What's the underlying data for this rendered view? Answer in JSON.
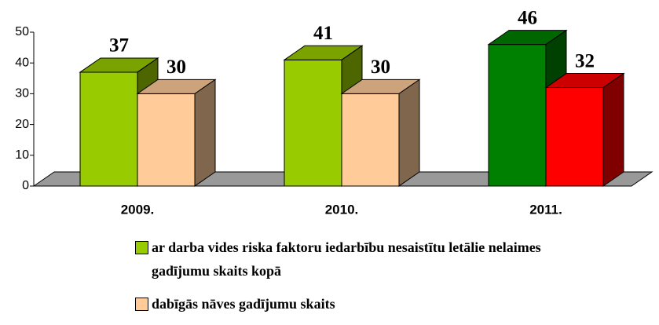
{
  "chart_data": {
    "type": "bar3d",
    "categories": [
      "2009.",
      "2010.",
      "2011."
    ],
    "series": [
      {
        "name": "ar darba vides riska faktoru iedarbību nesaistītu letālie nelaimes gadījumu skaits kopā",
        "color": "#99cc00",
        "colors": [
          "#99cc00",
          "#99cc00",
          "#008000"
        ],
        "values": [
          37,
          41,
          46
        ]
      },
      {
        "name": "dabīgās nāves gadījumu skaits",
        "color": "#ffcc99",
        "colors": [
          "#ffcc99",
          "#ffcc99",
          "#ff0000"
        ],
        "values": [
          30,
          30,
          32
        ]
      }
    ],
    "ylim": [
      0,
      50
    ],
    "yticks": [
      0,
      10,
      20,
      30,
      40,
      50
    ]
  }
}
